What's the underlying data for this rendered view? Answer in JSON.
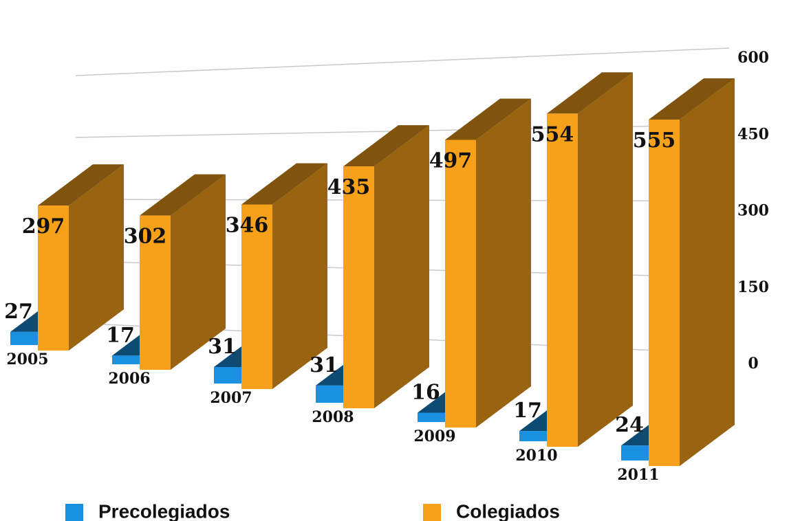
{
  "chart_data": {
    "type": "bar3d",
    "categories": [
      "2005",
      "2006",
      "2007",
      "2008",
      "2009",
      "2010",
      "2011"
    ],
    "series": [
      {
        "name": "Precolegiados",
        "color": "#1a90e0",
        "values": [
          27,
          17,
          31,
          31,
          16,
          17,
          24
        ]
      },
      {
        "name": "Colegiados",
        "color": "#f7a01a",
        "values": [
          297,
          302,
          346,
          435,
          497,
          554,
          555
        ]
      }
    ],
    "ylim": [
      0,
      600
    ],
    "yticks": [
      0,
      150,
      300,
      450,
      600
    ],
    "grid": true,
    "legend": "bottom"
  }
}
